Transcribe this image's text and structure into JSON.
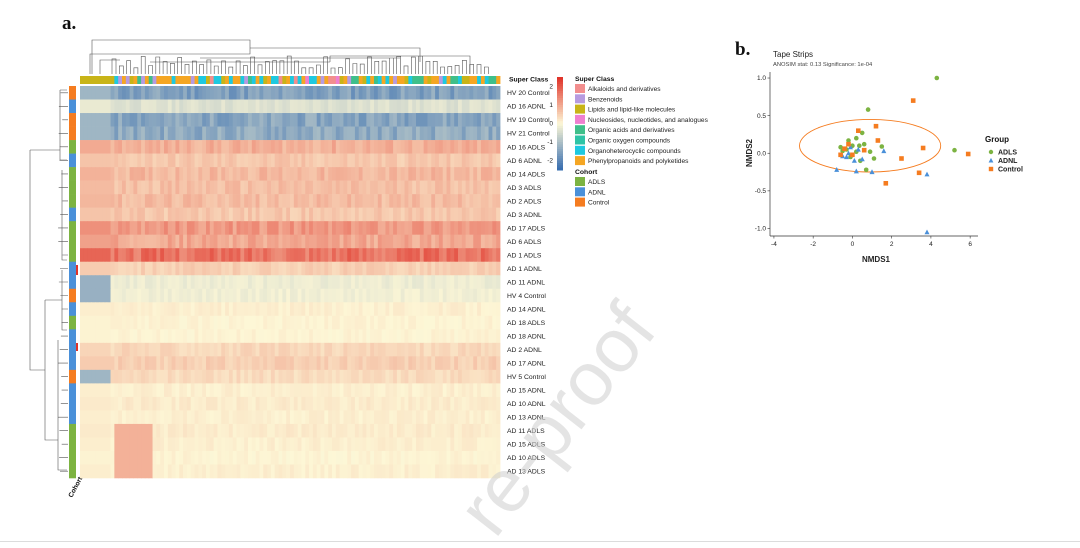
{
  "watermark": "re-proof",
  "colors": {
    "adls": "#7cb342",
    "adnl": "#4a90d9",
    "control": "#f57c20",
    "super_class": {
      "Alkaloids and derivatives": "#f28e8e",
      "Benzenoids": "#b79be0",
      "Lipids and lipid-like molecules": "#c8b418",
      "Nucleosides, nucleotides, and analogues": "#ef7fd0",
      "Organic acids and derivatives": "#3fbf8a",
      "Organic oxygen compounds": "#2ec4a6",
      "Organoheterocyclic compounds": "#1ec9e0",
      "Phenylpropanoids and polyketides": "#f5a623"
    }
  },
  "chart_data": [
    {
      "type": "heatmap",
      "panel_label": "a.",
      "row_labels": [
        "HV 20 Control",
        "AD 16 ADNL",
        "HV 19 Control",
        "HV 21 Control",
        "AD 16 ADLS",
        "AD 6 ADNL",
        "AD 14 ADLS",
        "AD 3 ADLS",
        "AD 2 ADLS",
        "AD 3 ADNL",
        "AD 17 ADLS",
        "AD 6 ADLS",
        "AD 1 ADLS",
        "AD 1 ADNL",
        "AD 11 ADNL",
        "HV 4 Control",
        "AD 14 ADNL",
        "AD 18 ADLS",
        "AD 18 ADNL",
        "AD 2 ADNL",
        "AD 17 ADNL",
        "HV 5 Control",
        "AD 15 ADNL",
        "AD 10 ADNL",
        "AD 13 ADNL",
        "AD 11 ADLS",
        "AD 15 ADLS",
        "AD 10 ADLS",
        "AD 13 ADLS"
      ],
      "row_cohorts": [
        "Control",
        "ADNL",
        "Control",
        "Control",
        "ADLS",
        "ADNL",
        "ADLS",
        "ADLS",
        "ADLS",
        "ADNL",
        "ADLS",
        "ADLS",
        "ADLS",
        "ADNL",
        "ADNL",
        "Control",
        "ADNL",
        "ADLS",
        "ADNL",
        "ADNL",
        "ADNL",
        "Control",
        "ADNL",
        "ADNL",
        "ADNL",
        "ADLS",
        "ADLS",
        "ADLS",
        "ADLS"
      ],
      "row_levels": [
        -1.6,
        -0.4,
        -1.5,
        -1.4,
        0.9,
        0.6,
        0.8,
        0.7,
        0.75,
        0.6,
        1.2,
        1.0,
        1.7,
        0.5,
        -0.2,
        -0.15,
        0.1,
        0.05,
        0.05,
        0.4,
        0.5,
        0.35,
        0.1,
        0.15,
        0.1,
        0.15,
        0.1,
        0.05,
        0.1
      ],
      "color_scale": {
        "min": -2.5,
        "max": 2.5,
        "ticks": [
          2,
          1,
          0,
          -1,
          -2
        ],
        "low": "#3a6fb0",
        "mid": "#fdf7d6",
        "high": "#e0342a"
      },
      "column_annotation_title": "Super Class",
      "row_annotation_title": "Cohort",
      "legend_super_class": {
        "title": "Super Class",
        "items": [
          "Alkaloids and derivatives",
          "Benzenoids",
          "Lipids and lipid-like molecules",
          "Nucleosides, nucleotides, and analogues",
          "Organic acids and derivatives",
          "Organic oxygen compounds",
          "Organoheterocyclic compounds",
          "Phenylpropanoids and polyketides"
        ]
      },
      "legend_cohort": {
        "title": "Cohort",
        "items": [
          "ADLS",
          "ADNL",
          "Control"
        ]
      }
    },
    {
      "type": "scatter",
      "panel_label": "b.",
      "title": "Tape Strips",
      "subtitle": "ANOSIM stat: 0.13 Significance: 1e-04",
      "xlabel": "NMDS1",
      "ylabel": "NMDS2",
      "xlim": [
        -4.2,
        6.4
      ],
      "ylim": [
        -1.1,
        1.08
      ],
      "xticks": [
        -4,
        -2,
        0,
        2,
        4,
        6
      ],
      "yticks": [
        1.0,
        0.5,
        0.0,
        -0.5,
        -1.0
      ],
      "legend_title": "Group",
      "legend_position": "right",
      "ellipse": {
        "group": "Control",
        "cx": 0.9,
        "cy": 0.1,
        "rx": 3.6,
        "ry": 0.35
      },
      "series": [
        {
          "name": "ADLS",
          "marker": "circle",
          "points": [
            [
              4.3,
              1.0
            ],
            [
              0.8,
              0.58
            ],
            [
              0.5,
              0.27
            ],
            [
              1.5,
              0.09
            ],
            [
              5.2,
              0.04
            ],
            [
              0.2,
              0.2
            ],
            [
              -0.3,
              0.05
            ],
            [
              0.6,
              0.12
            ],
            [
              -0.2,
              0.17
            ],
            [
              0.0,
              0.1
            ],
            [
              1.1,
              -0.07
            ],
            [
              -0.6,
              0.08
            ],
            [
              0.4,
              -0.1
            ],
            [
              0.2,
              0.02
            ],
            [
              0.7,
              -0.22
            ],
            [
              -0.5,
              0.03
            ],
            [
              -0.1,
              -0.05
            ],
            [
              0.35,
              0.1
            ],
            [
              0.9,
              0.02
            ]
          ]
        },
        {
          "name": "ADNL",
          "marker": "triangle",
          "points": [
            [
              3.8,
              -1.05
            ],
            [
              3.8,
              -0.28
            ],
            [
              0.2,
              -0.24
            ],
            [
              -0.8,
              -0.22
            ],
            [
              -0.3,
              -0.05
            ],
            [
              0.5,
              -0.08
            ],
            [
              1.6,
              0.03
            ],
            [
              -0.2,
              0.0
            ],
            [
              0.1,
              -0.1
            ],
            [
              -0.5,
              -0.04
            ],
            [
              0.3,
              0.05
            ],
            [
              -0.1,
              0.08
            ],
            [
              1.0,
              -0.25
            ]
          ]
        },
        {
          "name": "Control",
          "marker": "square",
          "points": [
            [
              3.1,
              0.7
            ],
            [
              1.2,
              0.36
            ],
            [
              0.3,
              0.3
            ],
            [
              5.9,
              -0.01
            ],
            [
              3.6,
              0.07
            ],
            [
              2.5,
              -0.07
            ],
            [
              3.4,
              -0.26
            ],
            [
              1.7,
              -0.4
            ],
            [
              -0.4,
              0.06
            ],
            [
              0.0,
              -0.02
            ],
            [
              0.6,
              0.04
            ],
            [
              -0.6,
              -0.02
            ],
            [
              1.3,
              0.17
            ],
            [
              -0.2,
              0.12
            ]
          ]
        }
      ]
    }
  ]
}
